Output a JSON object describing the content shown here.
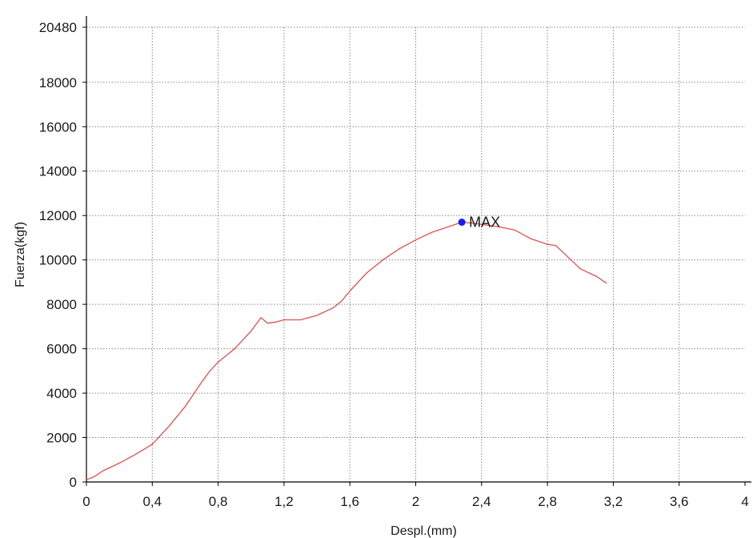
{
  "chart_data": {
    "type": "line",
    "xlabel": "Despl.(mm)",
    "ylabel": "Fuerza(kgf)",
    "xlim": [
      0,
      4
    ],
    "ylim": [
      0,
      20480
    ],
    "x_ticks": [
      "0",
      "0,4",
      "0,8",
      "1,2",
      "1,6",
      "2",
      "2,4",
      "2,8",
      "3,2",
      "3,6",
      "4"
    ],
    "x_tick_values": [
      0,
      0.4,
      0.8,
      1.2,
      1.6,
      2.0,
      2.4,
      2.8,
      3.2,
      3.6,
      4.0
    ],
    "y_ticks": [
      "0",
      "2000",
      "4000",
      "6000",
      "8000",
      "10000",
      "12000",
      "14000",
      "16000",
      "18000",
      "20480"
    ],
    "y_tick_values": [
      0,
      2000,
      4000,
      6000,
      8000,
      10000,
      12000,
      14000,
      16000,
      18000,
      20480
    ],
    "grid": true,
    "series": [
      {
        "color": "#e05050",
        "x": [
          0,
          0.05,
          0.1,
          0.2,
          0.3,
          0.4,
          0.45,
          0.5,
          0.6,
          0.7,
          0.75,
          0.8,
          0.9,
          1.0,
          1.06,
          1.1,
          1.15,
          1.2,
          1.3,
          1.4,
          1.5,
          1.55,
          1.6,
          1.7,
          1.8,
          1.9,
          2.0,
          2.1,
          2.2,
          2.28,
          2.35,
          2.5,
          2.6,
          2.7,
          2.8,
          2.85,
          2.9,
          3.0,
          3.1,
          3.16
        ],
        "y": [
          100,
          250,
          500,
          850,
          1250,
          1700,
          2100,
          2500,
          3400,
          4500,
          5000,
          5400,
          6000,
          6800,
          7400,
          7150,
          7200,
          7300,
          7300,
          7500,
          7850,
          8150,
          8600,
          9400,
          10000,
          10500,
          10900,
          11250,
          11500,
          11700,
          11650,
          11500,
          11350,
          10950,
          10700,
          10650,
          10300,
          9600,
          9250,
          8950
        ]
      }
    ],
    "annotations": [
      {
        "label": "MAX",
        "x": 2.28,
        "y": 11700,
        "color": "#1a1aff"
      }
    ]
  }
}
